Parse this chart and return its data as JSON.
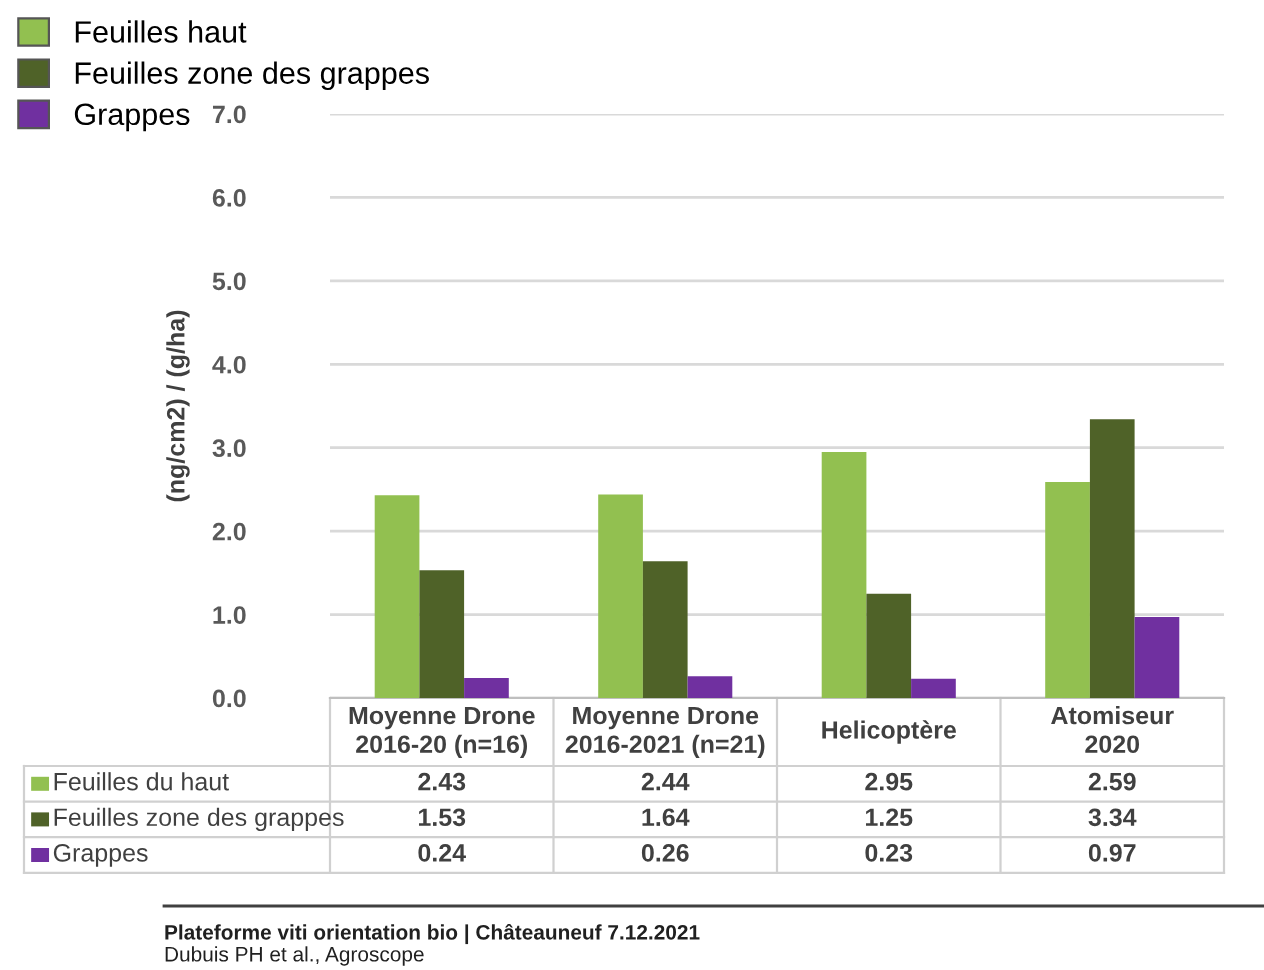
{
  "chart_data": {
    "type": "bar",
    "ylabel": "(ng/cm2) / (g/ha)",
    "categories": [
      "Moyenne Drone\n2016-20 (n=16)",
      "Moyenne Drone\n2016-2021 (n=21)",
      "Helicoptère",
      "Atomiseur\n2020"
    ],
    "series": [
      {
        "name": "Feuilles haut",
        "color": "#92c050",
        "values": [
          2.43,
          2.44,
          2.95,
          2.59
        ]
      },
      {
        "name": "Feuilles zone des grappes",
        "color": "#4f6228",
        "values": [
          1.53,
          1.64,
          1.25,
          3.34
        ]
      },
      {
        "name": "Grappes",
        "color": "#7030a0",
        "values": [
          0.24,
          0.26,
          0.23,
          0.97
        ]
      }
    ],
    "ylim": [
      0,
      7
    ],
    "yticks": [
      {
        "value": 0,
        "label": "0.0"
      },
      {
        "value": 1,
        "label": "1.0"
      },
      {
        "value": 2,
        "label": "2.0"
      },
      {
        "value": 3,
        "label": "3.0"
      },
      {
        "value": 4,
        "label": "4.0"
      },
      {
        "value": 5,
        "label": "5.0"
      },
      {
        "value": 6,
        "label": "6.0"
      },
      {
        "value": 7,
        "label": "7.0"
      }
    ],
    "grid": "y",
    "legend": "top left",
    "data_labels": true,
    "annotations": [
      "Feuilles du haut",
      "Feuilles zone des grappes",
      "Grappes",
      "Plateforme viti orientation bio | Châteauneuf 7.12.2021",
      "Dubuis PH et al., Agroscope"
    ]
  }
}
